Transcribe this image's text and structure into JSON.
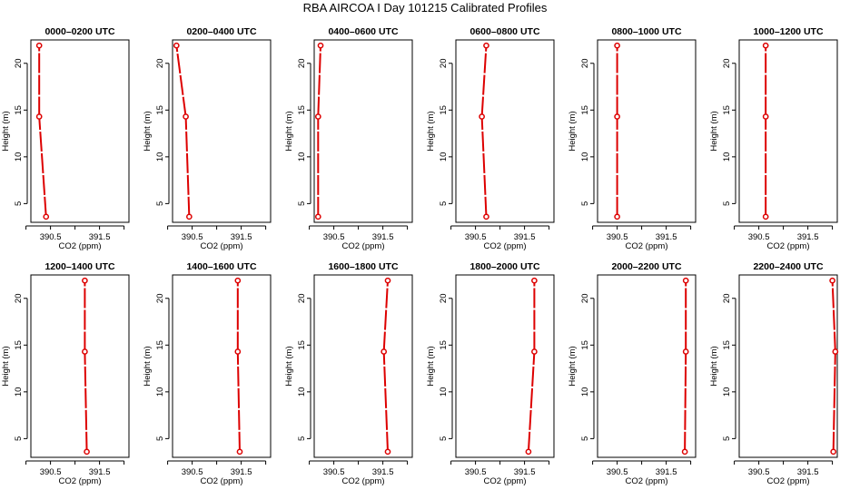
{
  "figure": {
    "title": "RBA AIRCOA I  Day 101215  Calibrated Profiles"
  },
  "colors": {
    "series": "#dd0000",
    "axis": "#000000"
  },
  "chart_data": [
    {
      "type": "line",
      "title": "0000–0200 UTC",
      "xlabel": "CO2 (ppm)",
      "ylabel": "Height (m)",
      "xlim": [
        390.1,
        392.1
      ],
      "ylim": [
        3,
        22.5
      ],
      "xticks": [
        390.5,
        391.5
      ],
      "yticks": [
        5,
        10,
        15,
        20
      ],
      "x": [
        390.41,
        390.27,
        390.27
      ],
      "y": [
        3.6,
        14.3,
        21.9
      ]
    },
    {
      "type": "line",
      "title": "0200–0400 UTC",
      "xlabel": "CO2 (ppm)",
      "ylabel": "Height (m)",
      "xlim": [
        390.1,
        392.1
      ],
      "ylim": [
        3,
        22.5
      ],
      "xticks": [
        390.5,
        391.5
      ],
      "yticks": [
        5,
        10,
        15,
        20
      ],
      "x": [
        390.44,
        390.37,
        390.18
      ],
      "y": [
        3.6,
        14.3,
        21.9
      ]
    },
    {
      "type": "line",
      "title": "0400–0600 UTC",
      "xlabel": "CO2 (ppm)",
      "ylabel": "Height (m)",
      "xlim": [
        390.1,
        392.1
      ],
      "ylim": [
        3,
        22.5
      ],
      "xticks": [
        390.5,
        391.5
      ],
      "yticks": [
        5,
        10,
        15,
        20
      ],
      "x": [
        390.18,
        390.18,
        390.23
      ],
      "y": [
        3.6,
        14.3,
        21.9
      ]
    },
    {
      "type": "line",
      "title": "0600–0800 UTC",
      "xlabel": "CO2 (ppm)",
      "ylabel": "Height (m)",
      "xlim": [
        390.1,
        392.1
      ],
      "ylim": [
        3,
        22.5
      ],
      "xticks": [
        390.5,
        391.5
      ],
      "yticks": [
        5,
        10,
        15,
        20
      ],
      "x": [
        390.72,
        390.63,
        390.72
      ],
      "y": [
        3.6,
        14.3,
        21.9
      ]
    },
    {
      "type": "line",
      "title": "0800–1000 UTC",
      "xlabel": "CO2 (ppm)",
      "ylabel": "Height (m)",
      "xlim": [
        390.1,
        392.1
      ],
      "ylim": [
        3,
        22.5
      ],
      "xticks": [
        390.5,
        391.5
      ],
      "yticks": [
        5,
        10,
        15,
        20
      ],
      "x": [
        390.5,
        390.5,
        390.5
      ],
      "y": [
        3.6,
        14.3,
        21.9
      ]
    },
    {
      "type": "line",
      "title": "1000–1200 UTC",
      "xlabel": "CO2 (ppm)",
      "ylabel": "Height (m)",
      "xlim": [
        390.1,
        392.1
      ],
      "ylim": [
        3,
        22.5
      ],
      "xticks": [
        390.5,
        391.5
      ],
      "yticks": [
        5,
        10,
        15,
        20
      ],
      "x": [
        390.64,
        390.64,
        390.64
      ],
      "y": [
        3.6,
        14.3,
        21.9
      ]
    },
    {
      "type": "line",
      "title": "1200–1400 UTC",
      "xlabel": "CO2 (ppm)",
      "ylabel": "Height (m)",
      "xlim": [
        390.1,
        392.1
      ],
      "ylim": [
        3,
        22.5
      ],
      "xticks": [
        390.5,
        391.5
      ],
      "yticks": [
        5,
        10,
        15,
        20
      ],
      "x": [
        391.24,
        391.2,
        391.2
      ],
      "y": [
        3.6,
        14.3,
        21.9
      ]
    },
    {
      "type": "line",
      "title": "1400–1600 UTC",
      "xlabel": "CO2 (ppm)",
      "ylabel": "Height (m)",
      "xlim": [
        390.1,
        392.1
      ],
      "ylim": [
        3,
        22.5
      ],
      "xticks": [
        390.5,
        391.5
      ],
      "yticks": [
        5,
        10,
        15,
        20
      ],
      "x": [
        391.47,
        391.43,
        391.43
      ],
      "y": [
        3.6,
        14.3,
        21.9
      ]
    },
    {
      "type": "line",
      "title": "1600–1800 UTC",
      "xlabel": "CO2 (ppm)",
      "ylabel": "Height (m)",
      "xlim": [
        390.1,
        392.1
      ],
      "ylim": [
        3,
        22.5
      ],
      "xticks": [
        390.5,
        391.5
      ],
      "yticks": [
        5,
        10,
        15,
        20
      ],
      "x": [
        391.6,
        391.52,
        391.6
      ],
      "y": [
        3.6,
        14.3,
        21.9
      ]
    },
    {
      "type": "line",
      "title": "1800–2000 UTC",
      "xlabel": "CO2 (ppm)",
      "ylabel": "Height (m)",
      "xlim": [
        390.1,
        392.1
      ],
      "ylim": [
        3,
        22.5
      ],
      "xticks": [
        390.5,
        391.5
      ],
      "yticks": [
        5,
        10,
        15,
        20
      ],
      "x": [
        391.58,
        391.7,
        391.7
      ],
      "y": [
        3.6,
        14.3,
        21.9
      ]
    },
    {
      "type": "line",
      "title": "2000–2200 UTC",
      "xlabel": "CO2 (ppm)",
      "ylabel": "Height (m)",
      "xlim": [
        390.1,
        392.1
      ],
      "ylim": [
        3,
        22.5
      ],
      "xticks": [
        390.5,
        391.5
      ],
      "yticks": [
        5,
        10,
        15,
        20
      ],
      "x": [
        391.88,
        391.9,
        391.9
      ],
      "y": [
        3.6,
        14.3,
        21.9
      ]
    },
    {
      "type": "line",
      "title": "2200–2400 UTC",
      "xlabel": "CO2 (ppm)",
      "ylabel": "Height (m)",
      "xlim": [
        390.1,
        392.1
      ],
      "ylim": [
        3,
        22.5
      ],
      "xticks": [
        390.5,
        391.5
      ],
      "yticks": [
        5,
        10,
        15,
        20
      ],
      "x": [
        392.02,
        392.06,
        392.0
      ],
      "y": [
        3.6,
        14.3,
        21.9
      ]
    }
  ]
}
